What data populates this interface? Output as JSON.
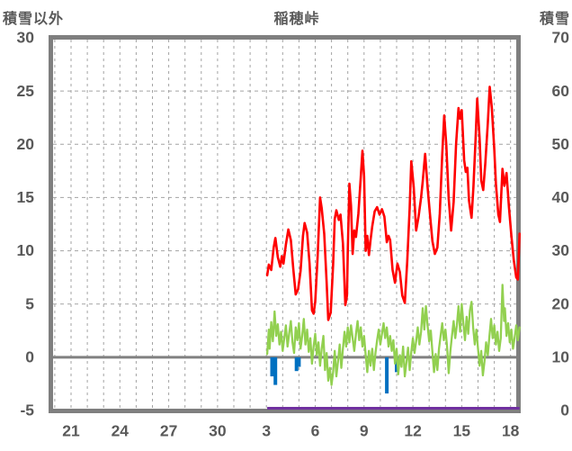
{
  "header": {
    "left_axis_title": "積雪以外",
    "chart_title": "稲穂峠",
    "right_axis_title": "積雪"
  },
  "chart_data": {
    "type": "line",
    "title": "稲穂峠",
    "left_axis": {
      "title": "積雪以外",
      "ticks": [
        30,
        25,
        20,
        15,
        10,
        5,
        0,
        -5
      ],
      "range": [
        -5,
        30
      ]
    },
    "right_axis": {
      "title": "積雪",
      "ticks": [
        70,
        60,
        50,
        40,
        30,
        20,
        10,
        0
      ],
      "range": [
        0,
        70
      ]
    },
    "x_axis": {
      "tick_labels": [
        "21",
        "24",
        "27",
        "30",
        "3",
        "6",
        "9",
        "12",
        "15",
        "18"
      ],
      "tick_positions": [
        0,
        3,
        6,
        9,
        12,
        15,
        18,
        21,
        24,
        27
      ],
      "x_unit": "days_since_first_tick_day21",
      "gridline_every": 1,
      "grid_first": -1,
      "grid_last": 27
    },
    "layout": {
      "grid": "dashed",
      "zero_line": true,
      "legend": "none"
    },
    "colors": {
      "red_line": "#FF0000",
      "green_line": "#92D050",
      "blue_bars": "#0070C0",
      "purple_line": "#7030A0",
      "frame": "#7F7F7F",
      "grid": "#A3A3A3",
      "zero_line": "#808080",
      "text": "#595959"
    },
    "series": [
      {
        "name": "red-line",
        "axis": "left",
        "type": "line",
        "color": "#FF0000",
        "points": [
          [
            12.05,
            7.7
          ],
          [
            12.15,
            8.7
          ],
          [
            12.3,
            8.2
          ],
          [
            12.45,
            10.3
          ],
          [
            12.55,
            11.2
          ],
          [
            12.7,
            9.4
          ],
          [
            12.85,
            8.5
          ],
          [
            12.95,
            9.5
          ],
          [
            13.05,
            8.8
          ],
          [
            13.2,
            10.6
          ],
          [
            13.35,
            12.0
          ],
          [
            13.5,
            11.0
          ],
          [
            13.65,
            8.3
          ],
          [
            13.8,
            5.9
          ],
          [
            13.95,
            6.4
          ],
          [
            14.1,
            8.1
          ],
          [
            14.25,
            11.4
          ],
          [
            14.35,
            12.6
          ],
          [
            14.5,
            11.7
          ],
          [
            14.65,
            8.8
          ],
          [
            14.8,
            4.4
          ],
          [
            14.9,
            4.1
          ],
          [
            15.0,
            5.2
          ],
          [
            15.15,
            9.5
          ],
          [
            15.3,
            15.0
          ],
          [
            15.4,
            14.0
          ],
          [
            15.55,
            11.6
          ],
          [
            15.7,
            7.0
          ],
          [
            15.8,
            3.5
          ],
          [
            15.95,
            4.2
          ],
          [
            16.1,
            8.7
          ],
          [
            16.2,
            13.0
          ],
          [
            16.3,
            13.8
          ],
          [
            16.45,
            12.9
          ],
          [
            16.55,
            13.4
          ],
          [
            16.7,
            10.7
          ],
          [
            16.85,
            4.9
          ],
          [
            16.95,
            5.8
          ],
          [
            17.0,
            10.0
          ],
          [
            17.1,
            16.3
          ],
          [
            17.2,
            14.2
          ],
          [
            17.3,
            9.7
          ],
          [
            17.4,
            11.9
          ],
          [
            17.5,
            11.3
          ],
          [
            17.65,
            13.5
          ],
          [
            17.8,
            17.0
          ],
          [
            17.9,
            19.4
          ],
          [
            18.0,
            17.0
          ],
          [
            18.1,
            10.0
          ],
          [
            18.2,
            11.4
          ],
          [
            18.3,
            9.6
          ],
          [
            18.4,
            11.0
          ],
          [
            18.5,
            12.3
          ],
          [
            18.65,
            13.7
          ],
          [
            18.8,
            14.1
          ],
          [
            18.95,
            13.4
          ],
          [
            19.1,
            13.9
          ],
          [
            19.25,
            13.2
          ],
          [
            19.4,
            10.8
          ],
          [
            19.5,
            11.4
          ],
          [
            19.6,
            11.0
          ],
          [
            19.75,
            8.2
          ],
          [
            19.9,
            7.0
          ],
          [
            20.05,
            8.8
          ],
          [
            20.2,
            8.0
          ],
          [
            20.35,
            5.8
          ],
          [
            20.5,
            5.1
          ],
          [
            20.65,
            9.0
          ],
          [
            20.8,
            14.0
          ],
          [
            20.9,
            18.4
          ],
          [
            21.05,
            16.0
          ],
          [
            21.2,
            11.9
          ],
          [
            21.35,
            13.2
          ],
          [
            21.5,
            15.0
          ],
          [
            21.6,
            16.5
          ],
          [
            21.75,
            19.1
          ],
          [
            21.9,
            16.0
          ],
          [
            22.05,
            13.4
          ],
          [
            22.2,
            10.9
          ],
          [
            22.35,
            9.7
          ],
          [
            22.5,
            10.3
          ],
          [
            22.65,
            13.5
          ],
          [
            22.8,
            19.0
          ],
          [
            22.92,
            22.7
          ],
          [
            23.05,
            20.0
          ],
          [
            23.2,
            14.9
          ],
          [
            23.35,
            11.9
          ],
          [
            23.5,
            14.6
          ],
          [
            23.65,
            20.0
          ],
          [
            23.8,
            23.4
          ],
          [
            23.9,
            22.4
          ],
          [
            24.0,
            23.2
          ],
          [
            24.15,
            18.5
          ],
          [
            24.25,
            17.4
          ],
          [
            24.35,
            17.8
          ],
          [
            24.45,
            14.7
          ],
          [
            24.6,
            13.1
          ],
          [
            24.72,
            16.0
          ],
          [
            24.85,
            20.5
          ],
          [
            24.95,
            24.3
          ],
          [
            25.1,
            20.5
          ],
          [
            25.2,
            16.6
          ],
          [
            25.32,
            15.7
          ],
          [
            25.45,
            18.2
          ],
          [
            25.6,
            22.0
          ],
          [
            25.72,
            25.4
          ],
          [
            25.85,
            23.4
          ],
          [
            26.0,
            19.5
          ],
          [
            26.1,
            16.3
          ],
          [
            26.25,
            13.4
          ],
          [
            26.35,
            12.7
          ],
          [
            26.5,
            17.7
          ],
          [
            26.62,
            16.1
          ],
          [
            26.75,
            17.3
          ],
          [
            26.9,
            14.1
          ],
          [
            27.05,
            11.4
          ],
          [
            27.2,
            9.1
          ],
          [
            27.35,
            7.5
          ],
          [
            27.45,
            7.3
          ],
          [
            27.55,
            11.6
          ]
        ]
      },
      {
        "name": "green-line",
        "axis": "left",
        "type": "line",
        "color": "#92D050",
        "points": [
          [
            12.05,
            0.3
          ],
          [
            12.15,
            2.6
          ],
          [
            12.2,
            0.8
          ],
          [
            12.3,
            3.3
          ],
          [
            12.4,
            1.5
          ],
          [
            12.5,
            4.3
          ],
          [
            12.6,
            2.0
          ],
          [
            12.7,
            3.1
          ],
          [
            12.8,
            1.2
          ],
          [
            12.9,
            2.4
          ],
          [
            13.0,
            0.6
          ],
          [
            13.1,
            1.8
          ],
          [
            13.2,
            3.0
          ],
          [
            13.3,
            1.0
          ],
          [
            13.4,
            2.2
          ],
          [
            13.5,
            3.4
          ],
          [
            13.6,
            1.4
          ],
          [
            13.7,
            0.4
          ],
          [
            13.8,
            2.8
          ],
          [
            13.9,
            1.6
          ],
          [
            14.0,
            3.2
          ],
          [
            14.1,
            0.8
          ],
          [
            14.2,
            2.0
          ],
          [
            14.3,
            3.6
          ],
          [
            14.4,
            1.2
          ],
          [
            14.5,
            2.6
          ],
          [
            14.6,
            0.5
          ],
          [
            14.7,
            1.8
          ],
          [
            14.8,
            -0.6
          ],
          [
            14.9,
            1.0
          ],
          [
            15.0,
            2.2
          ],
          [
            15.1,
            0.2
          ],
          [
            15.2,
            1.4
          ],
          [
            15.3,
            -0.8
          ],
          [
            15.4,
            0.8
          ],
          [
            15.5,
            2.0
          ],
          [
            15.6,
            -1.2
          ],
          [
            15.7,
            0.4
          ],
          [
            15.8,
            -2.2
          ],
          [
            15.9,
            -1.0
          ],
          [
            16.0,
            -2.6
          ],
          [
            16.1,
            -1.4
          ],
          [
            16.2,
            0.6
          ],
          [
            16.3,
            -1.8
          ],
          [
            16.4,
            -0.4
          ],
          [
            16.5,
            1.2
          ],
          [
            16.6,
            -1.0
          ],
          [
            16.7,
            0.8
          ],
          [
            16.8,
            2.4
          ],
          [
            16.9,
            1.0
          ],
          [
            17.0,
            2.8
          ],
          [
            17.1,
            1.4
          ],
          [
            17.2,
            3.0
          ],
          [
            17.3,
            1.8
          ],
          [
            17.4,
            0.6
          ],
          [
            17.5,
            2.2
          ],
          [
            17.6,
            3.4
          ],
          [
            17.7,
            1.6
          ],
          [
            17.8,
            2.8
          ],
          [
            17.9,
            1.0
          ],
          [
            18.0,
            2.0
          ],
          [
            18.1,
            0.2
          ],
          [
            18.2,
            -1.4
          ],
          [
            18.3,
            0.6
          ],
          [
            18.4,
            -0.8
          ],
          [
            18.5,
            0.8
          ],
          [
            18.6,
            -1.2
          ],
          [
            18.7,
            0.4
          ],
          [
            18.8,
            1.6
          ],
          [
            18.9,
            2.6
          ],
          [
            19.0,
            1.2
          ],
          [
            19.1,
            2.2
          ],
          [
            19.2,
            3.2
          ],
          [
            19.3,
            1.8
          ],
          [
            19.4,
            2.8
          ],
          [
            19.5,
            1.0
          ],
          [
            19.6,
            2.0
          ],
          [
            19.7,
            0.6
          ],
          [
            19.8,
            1.6
          ],
          [
            19.9,
            -0.6
          ],
          [
            20.0,
            0.8
          ],
          [
            20.1,
            -1.6
          ],
          [
            20.2,
            0.2
          ],
          [
            20.3,
            -0.9
          ],
          [
            20.4,
            1.0
          ],
          [
            20.5,
            -1.8
          ],
          [
            20.6,
            -0.5
          ],
          [
            20.7,
            0.9
          ],
          [
            20.8,
            -1.2
          ],
          [
            20.9,
            0.5
          ],
          [
            21.0,
            1.8
          ],
          [
            21.1,
            0.4
          ],
          [
            21.2,
            1.5
          ],
          [
            21.3,
            2.8
          ],
          [
            21.4,
            1.2
          ],
          [
            21.5,
            2.4
          ],
          [
            21.6,
            4.6
          ],
          [
            21.7,
            2.6
          ],
          [
            21.8,
            4.8
          ],
          [
            21.9,
            3.0
          ],
          [
            22.0,
            1.5
          ],
          [
            22.1,
            2.5
          ],
          [
            22.2,
            0.5
          ],
          [
            22.3,
            -1.4
          ],
          [
            22.4,
            0.3
          ],
          [
            22.5,
            -1.2
          ],
          [
            22.6,
            0.8
          ],
          [
            22.7,
            2.0
          ],
          [
            22.8,
            3.2
          ],
          [
            22.9,
            1.6
          ],
          [
            23.0,
            2.6
          ],
          [
            23.1,
            1.0
          ],
          [
            23.2,
            -1.5
          ],
          [
            23.3,
            0.5
          ],
          [
            23.4,
            2.0
          ],
          [
            23.5,
            3.4
          ],
          [
            23.6,
            1.8
          ],
          [
            23.7,
            3.0
          ],
          [
            23.8,
            4.8
          ],
          [
            23.9,
            2.4
          ],
          [
            24.0,
            5.0
          ],
          [
            24.1,
            3.2
          ],
          [
            24.2,
            1.6
          ],
          [
            24.3,
            3.8
          ],
          [
            24.4,
            2.2
          ],
          [
            24.5,
            4.4
          ],
          [
            24.6,
            5.2
          ],
          [
            24.7,
            2.8
          ],
          [
            24.8,
            1.2
          ],
          [
            24.9,
            2.6
          ],
          [
            25.0,
            0.8
          ],
          [
            25.1,
            -0.8
          ],
          [
            25.2,
            0.6
          ],
          [
            25.3,
            -1.7
          ],
          [
            25.4,
            -0.4
          ],
          [
            25.5,
            1.4
          ],
          [
            25.6,
            0.2
          ],
          [
            25.7,
            2.0
          ],
          [
            25.8,
            3.6
          ],
          [
            25.9,
            1.8
          ],
          [
            26.0,
            3.0
          ],
          [
            26.1,
            1.2
          ],
          [
            26.2,
            2.4
          ],
          [
            26.3,
            0.6
          ],
          [
            26.4,
            1.8
          ],
          [
            26.5,
            6.8
          ],
          [
            26.6,
            3.4
          ],
          [
            26.65,
            4.6
          ],
          [
            26.75,
            2.0
          ],
          [
            26.85,
            3.2
          ],
          [
            26.95,
            1.4
          ],
          [
            27.05,
            2.6
          ],
          [
            27.15,
            0.8
          ],
          [
            27.25,
            1.8
          ],
          [
            27.35,
            3.0
          ],
          [
            27.45,
            1.6
          ],
          [
            27.55,
            2.8
          ]
        ]
      },
      {
        "name": "blue-bars",
        "axis": "left",
        "type": "bar",
        "color": "#0070C0",
        "points": [
          [
            12.35,
            -1.8
          ],
          [
            12.55,
            -2.6
          ],
          [
            13.85,
            -1.3
          ],
          [
            14.0,
            -0.9
          ],
          [
            19.4,
            -3.4
          ],
          [
            20.0,
            -1.4
          ]
        ]
      },
      {
        "name": "purple-line",
        "axis": "right",
        "type": "line",
        "color": "#7030A0",
        "points": [
          [
            12.05,
            0
          ],
          [
            27.55,
            0
          ]
        ]
      }
    ]
  }
}
